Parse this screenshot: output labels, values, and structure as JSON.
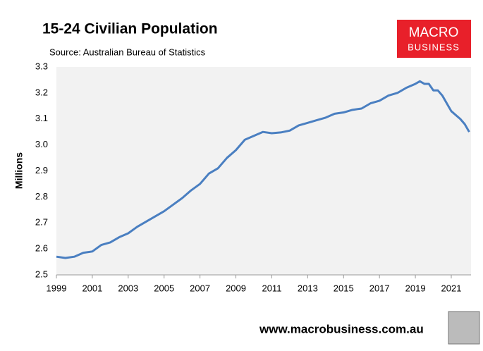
{
  "chart_data": {
    "type": "line",
    "title": "15-24 Civilian Population",
    "subtitle": "Source: Australian Bureau of Statistics",
    "y_label": "Millions",
    "logo": {
      "line1": "MACRO",
      "line2": "BUSINESS"
    },
    "footer": "www.macrobusiness.com.au",
    "color": "#4a7fc1",
    "x": [
      1999,
      1999.5,
      2000,
      2000.5,
      2001,
      2001.5,
      2002,
      2002.5,
      2003,
      2003.5,
      2004,
      2004.5,
      2005,
      2005.5,
      2006,
      2006.5,
      2007,
      2007.5,
      2008,
      2008.5,
      2009,
      2009.5,
      2010,
      2010.5,
      2011,
      2011.5,
      2012,
      2012.5,
      2013,
      2013.5,
      2014,
      2014.5,
      2015,
      2015.5,
      2016,
      2016.5,
      2017,
      2017.5,
      2018,
      2018.5,
      2019,
      2019.25,
      2019.5,
      2019.75,
      2020,
      2020.25,
      2020.5,
      2020.75,
      2021,
      2021.25,
      2021.5,
      2021.75,
      2022
    ],
    "values": [
      2.57,
      2.565,
      2.57,
      2.585,
      2.59,
      2.615,
      2.625,
      2.645,
      2.66,
      2.685,
      2.705,
      2.725,
      2.745,
      2.77,
      2.795,
      2.825,
      2.85,
      2.89,
      2.91,
      2.95,
      2.98,
      3.02,
      3.035,
      3.05,
      3.045,
      3.048,
      3.055,
      3.075,
      3.085,
      3.095,
      3.105,
      3.12,
      3.125,
      3.135,
      3.14,
      3.16,
      3.17,
      3.19,
      3.2,
      3.22,
      3.235,
      3.245,
      3.235,
      3.235,
      3.21,
      3.21,
      3.19,
      3.16,
      3.13,
      3.115,
      3.1,
      3.08,
      3.05
    ],
    "xlim": [
      1999,
      2022.1
    ],
    "xticks": [
      1999,
      2001,
      2003,
      2005,
      2007,
      2009,
      2011,
      2013,
      2015,
      2017,
      2019,
      2021
    ],
    "ylim": [
      2.5,
      3.3
    ],
    "yticks": [
      2.5,
      2.6,
      2.7,
      2.8,
      2.9,
      {
        "value": 3,
        "label": "3.0"
      },
      3.1,
      3.2,
      3.3
    ],
    "grid": false
  }
}
